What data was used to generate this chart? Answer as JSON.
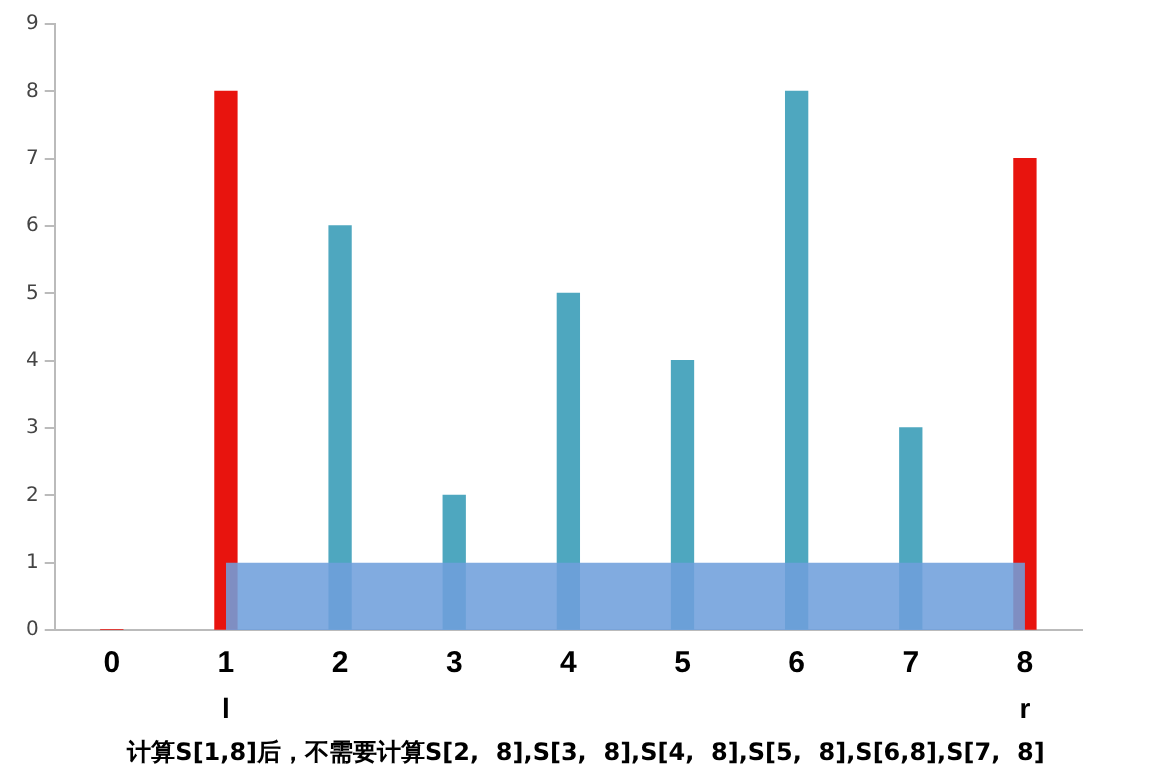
{
  "chart_data": {
    "type": "bar",
    "categories": [
      "0",
      "1",
      "2",
      "3",
      "4",
      "5",
      "6",
      "7",
      "8"
    ],
    "series": [
      {
        "values": [
          0,
          8,
          6,
          2,
          5,
          4,
          8,
          3,
          7
        ],
        "colors": [
          "#e8140e",
          "#e8140e",
          "#4ea7bf",
          "#4ea7bf",
          "#4ea7bf",
          "#4ea7bf",
          "#4ea7bf",
          "#4ea7bf",
          "#e8140e"
        ]
      },
      {
        "type": "area",
        "color": "#6f9fdc",
        "values": [
          null,
          1,
          1,
          1,
          1,
          1,
          1,
          1,
          1
        ]
      }
    ],
    "ylim": [
      0,
      9
    ],
    "yticks": [
      0,
      1,
      2,
      3,
      4,
      5,
      6,
      7,
      8,
      9
    ],
    "grid": false,
    "legend": false,
    "annotations": [
      {
        "text": "l",
        "x": "1",
        "y": 0
      },
      {
        "text": "r",
        "x": "8",
        "y": 0
      },
      "计算S[1,8]后，不需要计算S[2,  8],S[3,  8],S[4,  8],S[5,  8],S[6,8],S[7,  8]"
    ]
  }
}
